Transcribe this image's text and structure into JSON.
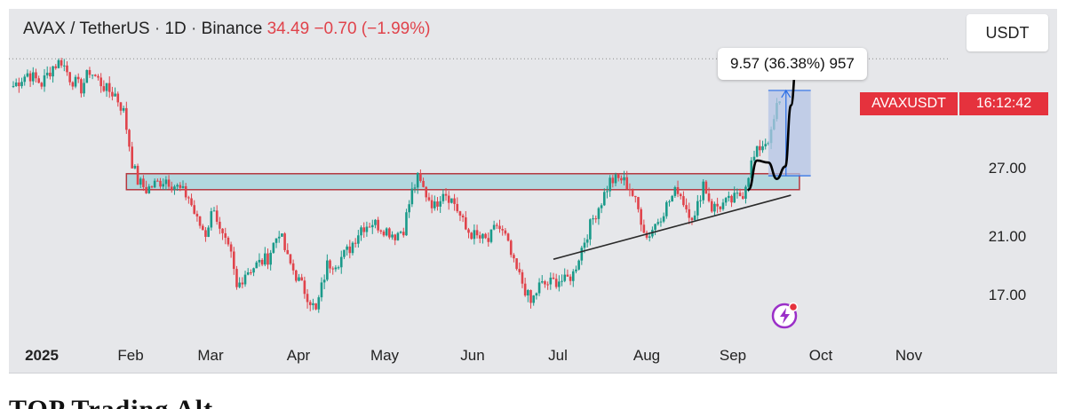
{
  "header": {
    "pair": "AVAX / TetherUS",
    "sep1": "·",
    "interval": "1D",
    "sep2": "·",
    "exchange": "Binance",
    "price": "34.49",
    "change": "−0.70",
    "change_pct": "(−1.99%)"
  },
  "currency_button": "USDT",
  "measure_label": "9.57 (36.38%) 957",
  "price_tag": {
    "symbol": "AVAXUSDT",
    "time": "16:12:42",
    "color": "#e5323d"
  },
  "colors": {
    "up": "#1a9a8a",
    "down": "#e0434b",
    "zone_fill": "#a8d4dc",
    "zone_border": "#b5383f",
    "measure_fill": "#b4c4e6",
    "measure_line": "#2a6ee6",
    "trendline": "#2a2a2a"
  },
  "footer_partial_text": "TOP Trading Alt",
  "icon": "lightning-bolt-icon",
  "chart_data": {
    "type": "candlestick",
    "title": "AVAX / TetherUS · 1D · Binance",
    "y_scale": "log",
    "y_ticks": [
      27.0,
      21.0,
      17.0
    ],
    "y_tick_labels": [
      "27.00",
      "21.00",
      "17.00"
    ],
    "x_tick_labels": [
      "2025",
      "Feb",
      "Mar",
      "Apr",
      "May",
      "Jun",
      "Jul",
      "Aug",
      "Sep",
      "Oct",
      "Nov"
    ],
    "x_range": [
      "2024-12-22",
      "2025-11-20"
    ],
    "ylim": [
      14.6,
      40.0
    ],
    "grid": false,
    "close_path": [
      [
        "2024-12-22",
        36.5
      ],
      [
        "2024-12-27",
        38.2
      ],
      [
        "2025-01-01",
        36.8
      ],
      [
        "2025-01-05",
        39.2
      ],
      [
        "2025-01-08",
        40.0
      ],
      [
        "2025-01-11",
        37.6
      ],
      [
        "2025-01-15",
        36.2
      ],
      [
        "2025-01-18",
        38.6
      ],
      [
        "2025-01-21",
        37.3
      ],
      [
        "2025-01-24",
        36.0
      ],
      [
        "2025-01-27",
        35.4
      ],
      [
        "2025-01-30",
        33.2
      ],
      [
        "2025-02-02",
        27.6
      ],
      [
        "2025-02-04",
        25.8
      ],
      [
        "2025-02-07",
        25.0
      ],
      [
        "2025-02-10",
        25.5
      ],
      [
        "2025-02-14",
        26.0
      ],
      [
        "2025-02-18",
        25.2
      ],
      [
        "2025-02-22",
        24.3
      ],
      [
        "2025-02-25",
        22.3
      ],
      [
        "2025-02-28",
        21.3
      ],
      [
        "2025-03-03",
        23.6
      ],
      [
        "2025-03-05",
        21.4
      ],
      [
        "2025-03-09",
        19.6
      ],
      [
        "2025-03-11",
        17.4
      ],
      [
        "2025-03-14",
        18.5
      ],
      [
        "2025-03-18",
        19.0
      ],
      [
        "2025-03-22",
        19.5
      ],
      [
        "2025-03-26",
        21.5
      ],
      [
        "2025-03-29",
        19.4
      ],
      [
        "2025-04-02",
        17.9
      ],
      [
        "2025-04-06",
        16.7
      ],
      [
        "2025-04-08",
        16.0
      ],
      [
        "2025-04-12",
        19.0
      ],
      [
        "2025-04-16",
        19.3
      ],
      [
        "2025-04-20",
        20.2
      ],
      [
        "2025-04-24",
        21.8
      ],
      [
        "2025-04-28",
        22.2
      ],
      [
        "2025-05-02",
        21.7
      ],
      [
        "2025-05-06",
        21.2
      ],
      [
        "2025-05-09",
        21.7
      ],
      [
        "2025-05-12",
        24.8
      ],
      [
        "2025-05-14",
        26.0
      ],
      [
        "2025-05-17",
        24.6
      ],
      [
        "2025-05-20",
        23.5
      ],
      [
        "2025-05-23",
        25.0
      ],
      [
        "2025-05-27",
        23.8
      ],
      [
        "2025-05-31",
        21.6
      ],
      [
        "2025-06-04",
        21.0
      ],
      [
        "2025-06-08",
        20.7
      ],
      [
        "2025-06-11",
        22.0
      ],
      [
        "2025-06-14",
        21.0
      ],
      [
        "2025-06-17",
        19.0
      ],
      [
        "2025-06-20",
        17.8
      ],
      [
        "2025-06-23",
        16.5
      ],
      [
        "2025-06-26",
        17.6
      ],
      [
        "2025-06-30",
        17.8
      ],
      [
        "2025-07-03",
        18.0
      ],
      [
        "2025-07-05",
        17.9
      ],
      [
        "2025-07-08",
        18.4
      ],
      [
        "2025-07-12",
        20.8
      ],
      [
        "2025-07-15",
        22.5
      ],
      [
        "2025-07-18",
        24.0
      ],
      [
        "2025-07-21",
        25.8
      ],
      [
        "2025-07-25",
        26.0
      ],
      [
        "2025-07-28",
        25.2
      ],
      [
        "2025-07-31",
        23.2
      ],
      [
        "2025-08-03",
        21.0
      ],
      [
        "2025-08-07",
        22.4
      ],
      [
        "2025-08-11",
        24.0
      ],
      [
        "2025-08-14",
        25.1
      ],
      [
        "2025-08-17",
        23.4
      ],
      [
        "2025-08-20",
        22.5
      ],
      [
        "2025-08-23",
        25.7
      ],
      [
        "2025-08-26",
        23.4
      ],
      [
        "2025-08-29",
        23.6
      ],
      [
        "2025-09-02",
        24.0
      ],
      [
        "2025-09-06",
        24.7
      ],
      [
        "2025-09-09",
        27.5
      ],
      [
        "2025-09-12",
        29.2
      ],
      [
        "2025-09-14",
        29.8
      ],
      [
        "2025-09-16",
        30.5
      ],
      [
        "2025-09-18",
        33.8
      ],
      [
        "2025-09-19",
        34.49
      ]
    ],
    "annotations": {
      "resistance_zone": {
        "from": "2025-01-31",
        "to": "2025-09-26",
        "top": 26.5,
        "bottom": 25.0
      },
      "trendline": {
        "from": [
          "2025-07-01",
          19.4
        ],
        "to": [
          "2025-09-23",
          24.5
        ]
      },
      "projection_path": [
        [
          "2025-09-08",
          25.0
        ],
        [
          "2025-09-11",
          27.8
        ],
        [
          "2025-09-15",
          27.6
        ],
        [
          "2025-09-18",
          26.0
        ],
        [
          "2025-09-21",
          27.2
        ],
        [
          "2025-09-23",
          34.0
        ],
        [
          "2025-09-25",
          40.0
        ]
      ],
      "measure_box": {
        "from": "2025-09-15",
        "to": "2025-09-30",
        "low": 26.3,
        "high": 35.9,
        "label": "9.57 (36.38%) 957"
      }
    }
  }
}
